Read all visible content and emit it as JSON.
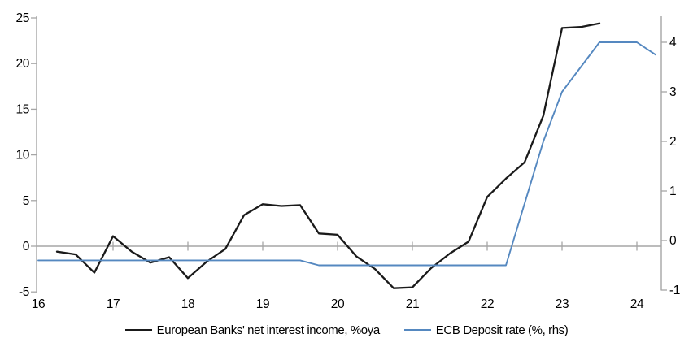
{
  "chart_data": {
    "type": "line",
    "title": "",
    "subtitle": "",
    "grid": "zero-gridline-only",
    "legend_position": "bottom",
    "x_axis": {
      "tick_labels": [
        "16",
        "17",
        "18",
        "19",
        "20",
        "21",
        "22",
        "23",
        "24"
      ],
      "tick_values": [
        2016,
        2017,
        2018,
        2019,
        2020,
        2021,
        2022,
        2023,
        2024
      ],
      "xlim": [
        2016,
        2024.35
      ],
      "frequency": "quarterly"
    },
    "left_axis": {
      "ticks": [
        25,
        20,
        15,
        10,
        5,
        0,
        -5
      ],
      "lim": [
        -5,
        25
      ],
      "applies_to": "European Banks' net interest income, %oya"
    },
    "right_axis": {
      "ticks": [
        4,
        3,
        2,
        1,
        0,
        -1
      ],
      "lim": [
        -1,
        4
      ],
      "applies_to": "ECB Deposit rate (%, rhs)"
    },
    "series": [
      {
        "name": "European Banks' net interest income, %oya",
        "axis": "left",
        "color": "#1a1a1a",
        "x_start": 2016.25,
        "x_step": 0.25,
        "values": [
          -0.6,
          -0.9,
          -2.9,
          1.1,
          -0.6,
          -1.8,
          -1.2,
          -3.5,
          -1.7,
          -0.3,
          3.4,
          4.6,
          4.4,
          4.5,
          1.4,
          1.25,
          -1.1,
          -2.5,
          -4.6,
          -4.5,
          -2.4,
          -0.8,
          0.5,
          5.4,
          7.4,
          9.2,
          14.3,
          23.9,
          24.0,
          24.4
        ]
      },
      {
        "name": "ECB Deposit rate (%, rhs)",
        "axis": "right",
        "color": "#5588c0",
        "x_start": 2016.0,
        "x_step": 0.25,
        "values": [
          -0.4,
          -0.4,
          -0.4,
          -0.4,
          -0.4,
          -0.4,
          -0.4,
          -0.4,
          -0.4,
          -0.4,
          -0.4,
          -0.4,
          -0.4,
          -0.4,
          -0.4,
          -0.5,
          -0.5,
          -0.5,
          -0.5,
          -0.5,
          -0.5,
          -0.5,
          -0.5,
          -0.5,
          -0.5,
          -0.5,
          0.75,
          2.0,
          3.0,
          3.5,
          4.0,
          4.0,
          4.0,
          3.75
        ]
      }
    ],
    "colors": {
      "axis_gray": "#a6a6a6",
      "background": "#ffffff"
    }
  }
}
